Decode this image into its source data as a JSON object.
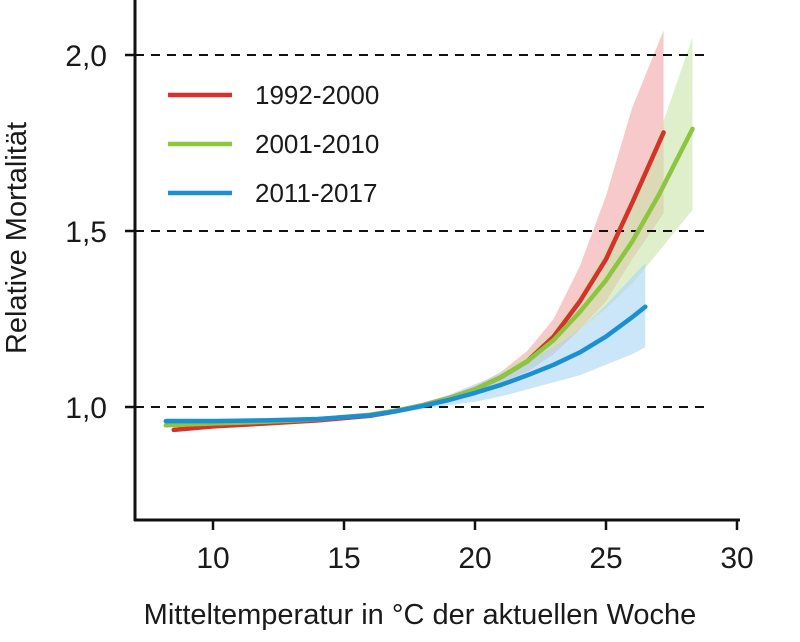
{
  "chart_data": {
    "type": "line",
    "title": "",
    "xlabel": "Mitteltemperatur in °C der aktuellen Woche",
    "ylabel": "Relative Mortalität",
    "xlim": [
      7,
      30.3
    ],
    "ylim": [
      0.67,
      2.15
    ],
    "x_ticks": [
      10,
      15,
      20,
      25,
      30
    ],
    "x_tick_labels": [
      "10",
      "15",
      "20",
      "25",
      "30"
    ],
    "y_ticks": [
      1.0,
      1.5,
      2.0
    ],
    "y_tick_labels": [
      "1,0",
      "1,5",
      "2,0"
    ],
    "grid": "dashed horizontal lines at y ticks",
    "legend_position": "top-left",
    "series": [
      {
        "name": "1992-2000",
        "color": "#d6312b",
        "band_color": "#f4a5a8",
        "x": [
          8.5,
          10,
          12,
          14,
          16,
          17,
          18,
          19,
          20,
          21,
          22,
          23,
          24,
          25,
          26,
          27.2
        ],
        "y": [
          0.935,
          0.945,
          0.953,
          0.962,
          0.975,
          0.988,
          1.005,
          1.025,
          1.05,
          1.085,
          1.13,
          1.2,
          1.3,
          1.42,
          1.58,
          1.78
        ],
        "upper": [
          0.94,
          0.95,
          0.958,
          0.967,
          0.98,
          0.992,
          1.01,
          1.032,
          1.06,
          1.1,
          1.16,
          1.25,
          1.4,
          1.6,
          1.85,
          2.07
        ],
        "lower": [
          0.93,
          0.94,
          0.948,
          0.957,
          0.97,
          0.984,
          1.0,
          1.018,
          1.04,
          1.07,
          1.1,
          1.15,
          1.22,
          1.3,
          1.42,
          1.55
        ]
      },
      {
        "name": "2001-2010",
        "color": "#8cc63f",
        "band_color": "#c9e4a8",
        "x": [
          8.2,
          10,
          12,
          14,
          16,
          17,
          18,
          19,
          20,
          21,
          22,
          23,
          24,
          25,
          26,
          27,
          28.3
        ],
        "y": [
          0.948,
          0.953,
          0.958,
          0.965,
          0.978,
          0.99,
          1.005,
          1.025,
          1.05,
          1.085,
          1.13,
          1.19,
          1.27,
          1.36,
          1.47,
          1.6,
          1.79
        ],
        "upper": [
          0.953,
          0.958,
          0.963,
          0.97,
          0.983,
          0.994,
          1.01,
          1.03,
          1.058,
          1.098,
          1.15,
          1.22,
          1.32,
          1.45,
          1.6,
          1.77,
          2.05
        ],
        "lower": [
          0.943,
          0.948,
          0.953,
          0.96,
          0.973,
          0.986,
          1.0,
          1.02,
          1.043,
          1.073,
          1.11,
          1.16,
          1.22,
          1.28,
          1.35,
          1.44,
          1.56
        ]
      },
      {
        "name": "2011-2017",
        "color": "#1a8fd3",
        "band_color": "#a9d6f5",
        "x": [
          8.2,
          10,
          12,
          14,
          16,
          17,
          18,
          19,
          20,
          21,
          22,
          23,
          24,
          25,
          26,
          26.5
        ],
        "y": [
          0.96,
          0.96,
          0.962,
          0.966,
          0.976,
          0.988,
          1.003,
          1.02,
          1.04,
          1.063,
          1.09,
          1.12,
          1.155,
          1.2,
          1.255,
          1.285
        ],
        "upper": [
          0.968,
          0.967,
          0.968,
          0.972,
          0.982,
          0.994,
          1.012,
          1.035,
          1.065,
          1.095,
          1.13,
          1.17,
          1.22,
          1.29,
          1.37,
          1.41
        ],
        "lower": [
          0.952,
          0.953,
          0.956,
          0.96,
          0.97,
          0.982,
          0.994,
          1.005,
          1.015,
          1.03,
          1.05,
          1.07,
          1.09,
          1.12,
          1.15,
          1.17
        ]
      }
    ]
  }
}
